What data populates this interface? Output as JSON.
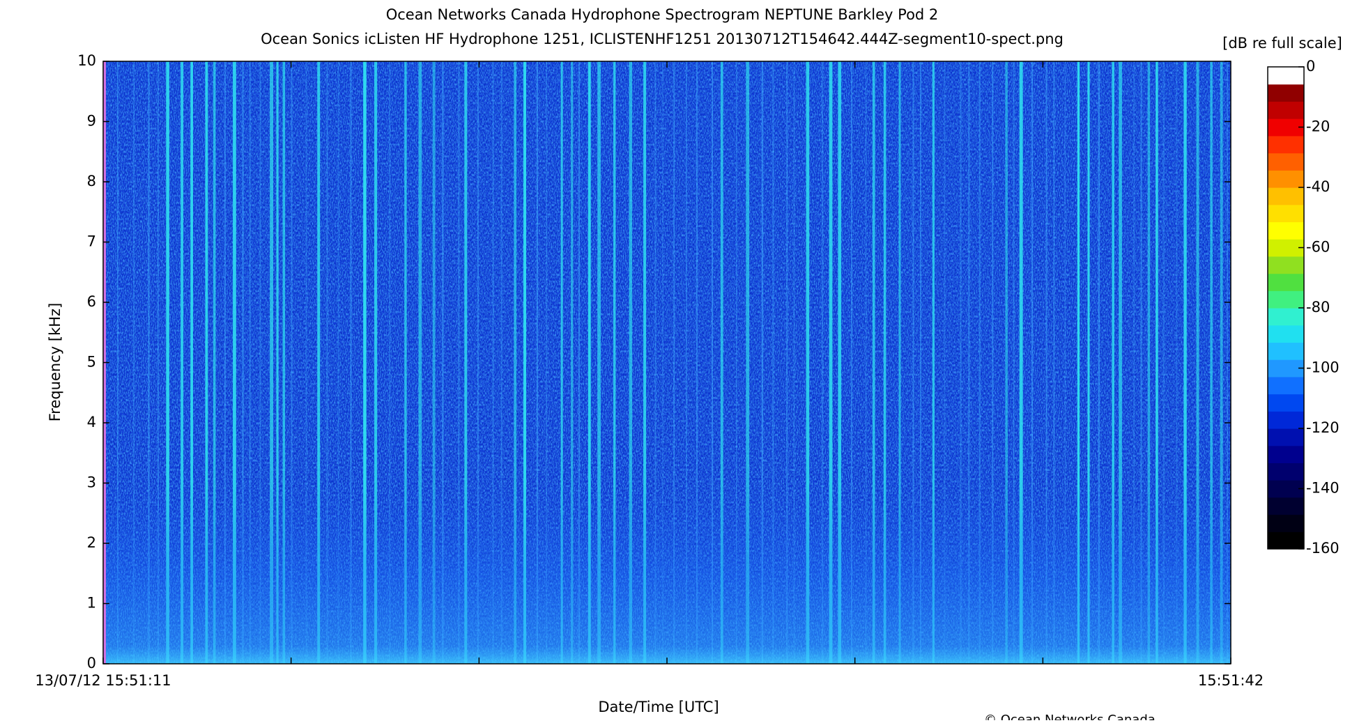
{
  "chart_data": {
    "type": "spectrogram",
    "title": "Ocean Networks Canada Hydrophone Spectrogram NEPTUNE Barkley Pod 2",
    "subtitle": "Ocean Sonics icListen HF Hydrophone 1251, ICLISTENHF1251 20130712T154642.444Z-segment10-spect.png",
    "x_label": "Date/Time [UTC]",
    "y_label": "Frequency [kHz]",
    "xlim": [
      "2013-07-12T15:51:11",
      "2013-07-12T15:51:42"
    ],
    "xticks": [
      {
        "value": "2013-07-12T15:51:11",
        "label": "13/07/12 15:51:11"
      },
      {
        "value": "2013-07-12T15:51:42",
        "label": "15:51:42"
      }
    ],
    "ylim": [
      0,
      10
    ],
    "yticks": [
      0,
      1,
      2,
      3,
      4,
      5,
      6,
      7,
      8,
      9,
      10
    ],
    "colorbar": {
      "label": "[dB re full scale]",
      "lim": [
        -160,
        0
      ],
      "ticks": [
        0,
        -20,
        -40,
        -60,
        -80,
        -100,
        -120,
        -140,
        -160
      ],
      "colors": [
        "#000000",
        "#000014",
        "#000030",
        "#000050",
        "#00006e",
        "#00008e",
        "#0010b0",
        "#0028d8",
        "#0048f0",
        "#1070ff",
        "#2098ff",
        "#20c0ff",
        "#20e0f0",
        "#30f0d0",
        "#40f080",
        "#50e040",
        "#90e020",
        "#d0f000",
        "#ffff00",
        "#ffe000",
        "#ffc000",
        "#ff9000",
        "#ff6000",
        "#ff3000",
        "#f00000",
        "#c00000",
        "#900000",
        "#ffffff"
      ]
    },
    "copyright": "© Ocean Networks Canada"
  }
}
